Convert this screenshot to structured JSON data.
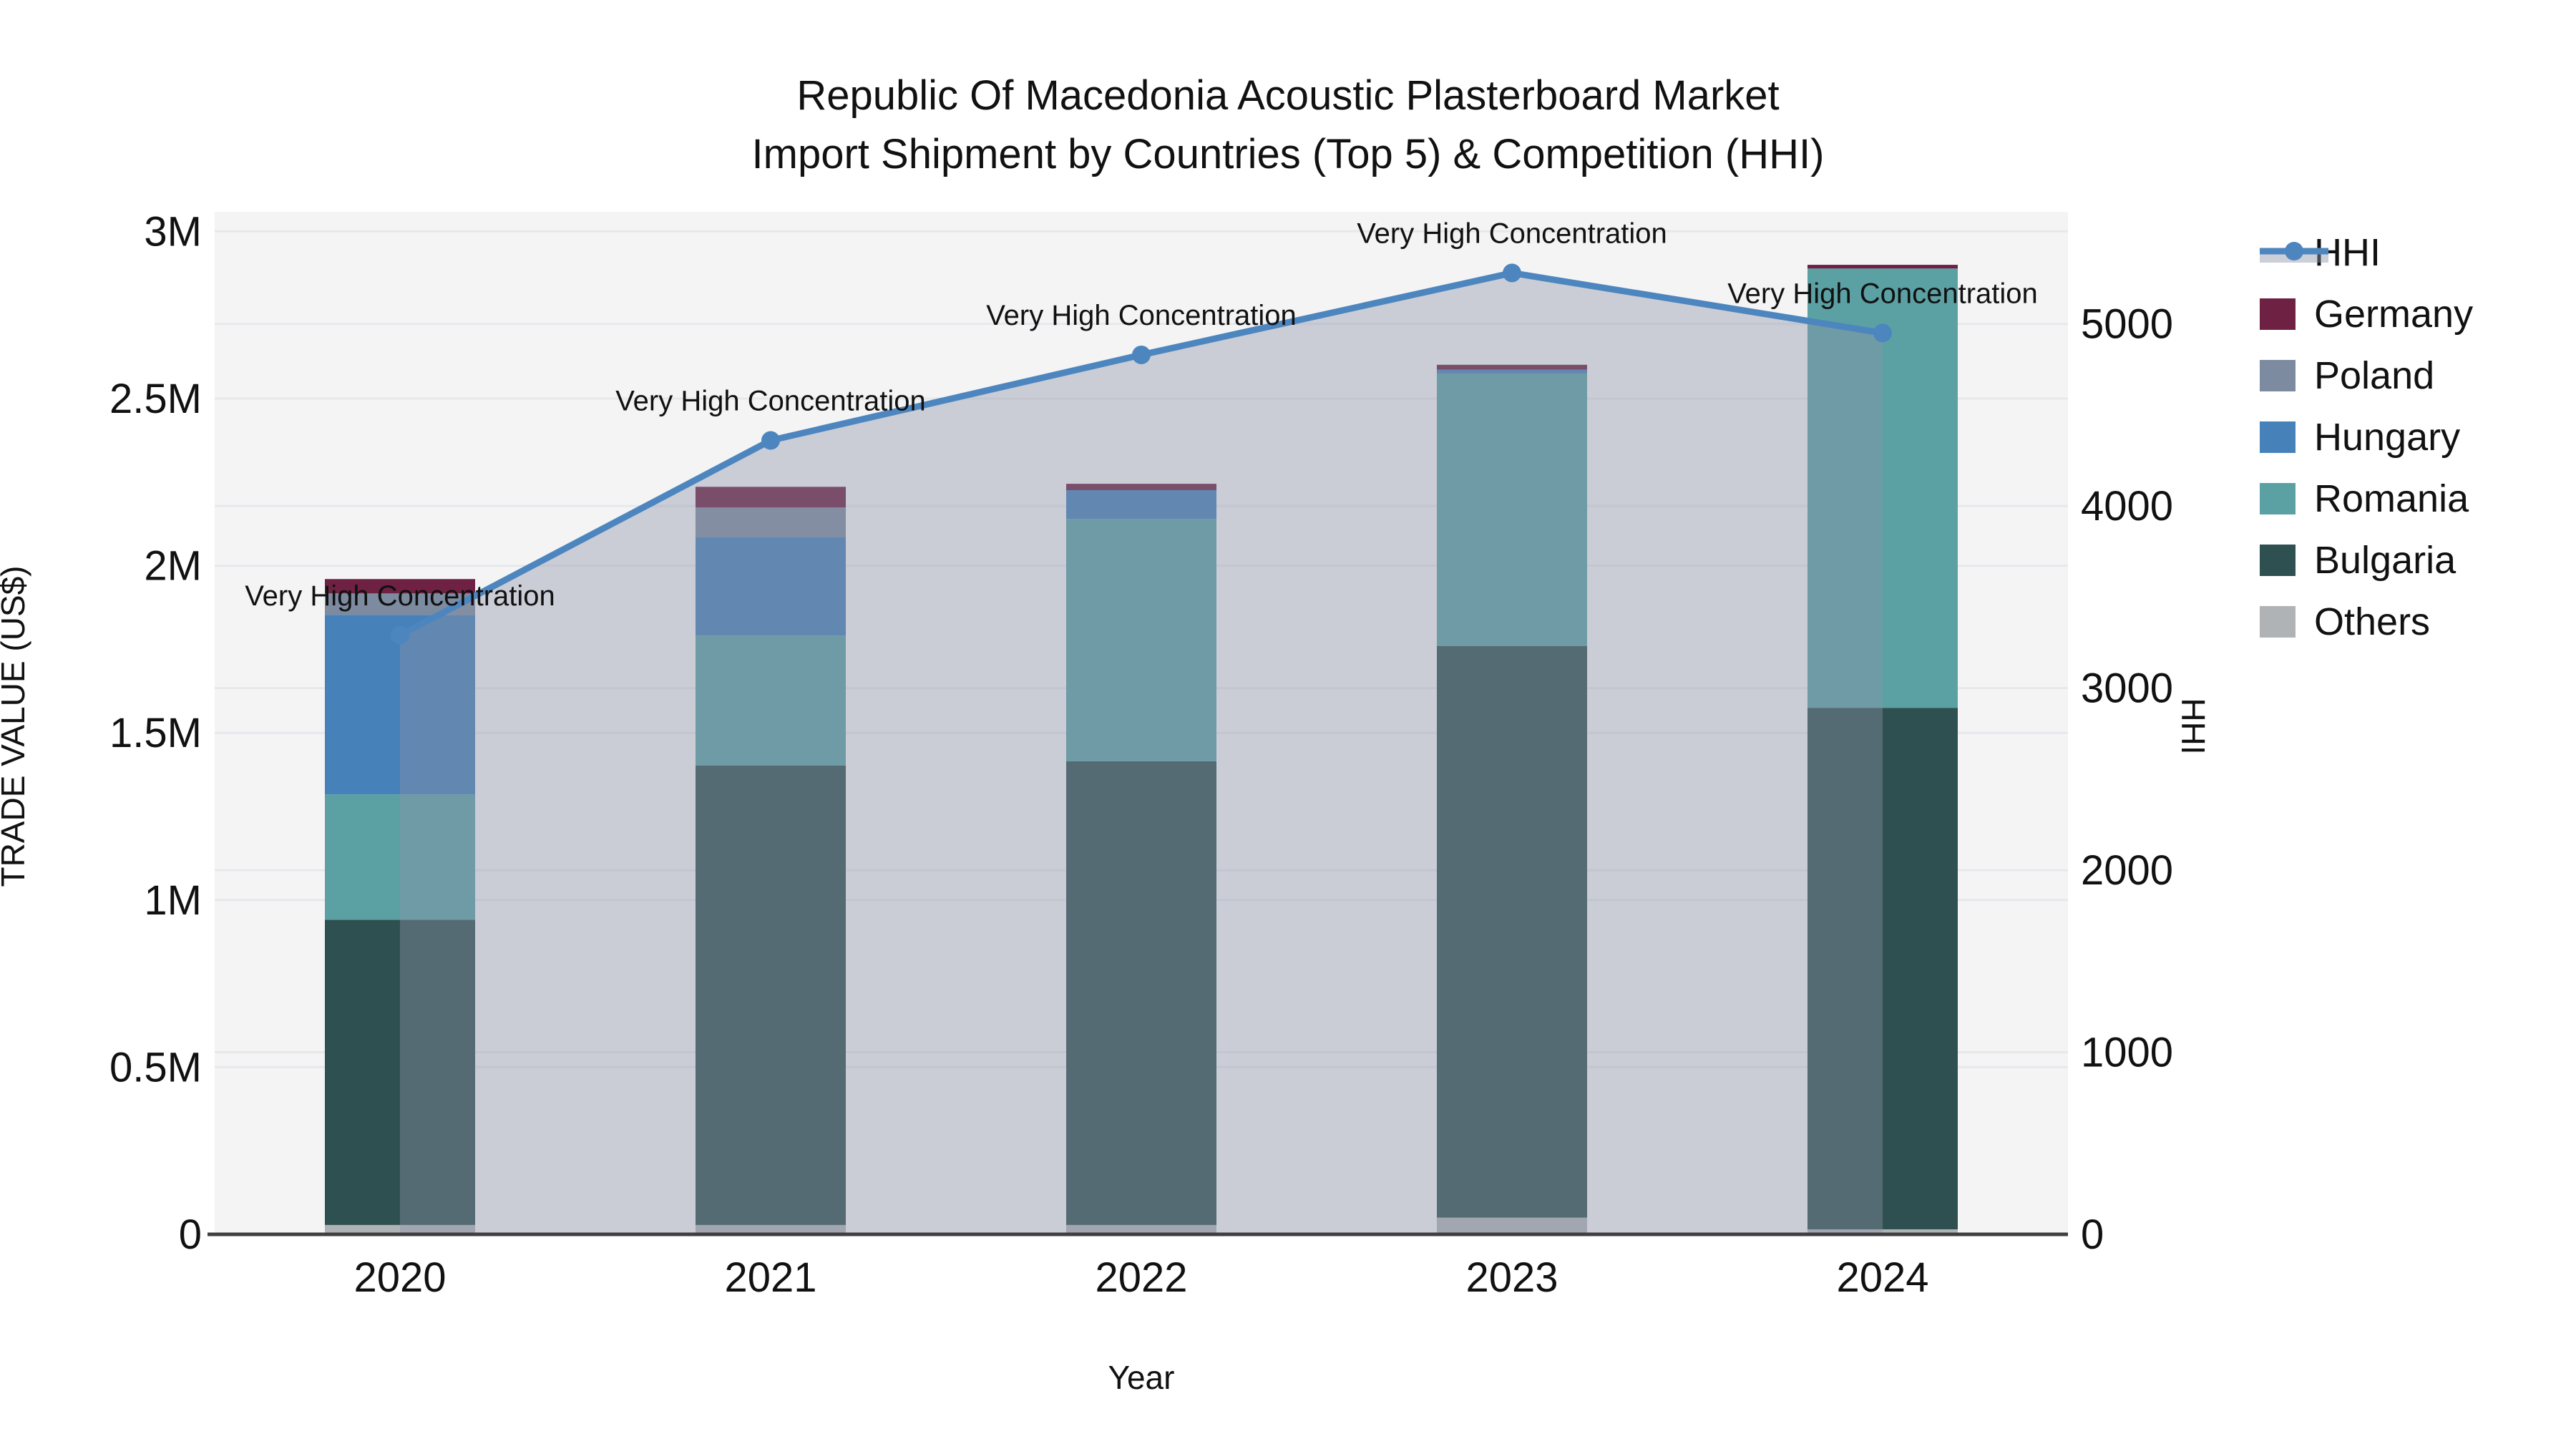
{
  "title": {
    "line1": "Republic Of Macedonia Acoustic Plasterboard Market",
    "line2": "Import Shipment by Countries (Top 5) & Competition (HHI)"
  },
  "axes": {
    "x_title": "Year",
    "y_left_title": "TRADE VALUE (US$)",
    "y_right_title": "HHI"
  },
  "legend": {
    "items": [
      {
        "label": "HHI",
        "type": "line",
        "color": "#4d86bf"
      },
      {
        "label": "Germany",
        "type": "box",
        "color": "#6e2142"
      },
      {
        "label": "Poland",
        "type": "box",
        "color": "#7d8ba0"
      },
      {
        "label": "Hungary",
        "type": "box",
        "color": "#4681b9"
      },
      {
        "label": "Romania",
        "type": "box",
        "color": "#5ba1a4"
      },
      {
        "label": "Bulgaria",
        "type": "box",
        "color": "#2f5050"
      },
      {
        "label": "Others",
        "type": "box",
        "color": "#afb3b6"
      }
    ]
  },
  "chart_data": {
    "type": "combo-stacked-bar-line",
    "categories": [
      "2020",
      "2021",
      "2022",
      "2023",
      "2024"
    ],
    "bar_unit": "US$",
    "bar_series": [
      {
        "name": "Others",
        "color": "#afb3b6",
        "values": [
          28000,
          28000,
          28000,
          50000,
          15000
        ]
      },
      {
        "name": "Bulgaria",
        "color": "#2f5050",
        "values": [
          913000,
          1374000,
          1387000,
          1710000,
          1560000
        ]
      },
      {
        "name": "Romania",
        "color": "#5ba1a4",
        "values": [
          375000,
          389000,
          725000,
          815000,
          1314000
        ]
      },
      {
        "name": "Hungary",
        "color": "#4681b9",
        "values": [
          537000,
          295000,
          86000,
          11000,
          0
        ]
      },
      {
        "name": "Poland",
        "color": "#7d8ba0",
        "values": [
          64000,
          88000,
          0,
          0,
          0
        ]
      },
      {
        "name": "Germany",
        "color": "#6e2142",
        "values": [
          43000,
          62000,
          19000,
          15000,
          11000
        ]
      }
    ],
    "bar_totals": [
      1960000,
      2236000,
      2245000,
      2601000,
      2900000
    ],
    "line_series": {
      "name": "HHI",
      "color": "#4d86bf",
      "area_fill": "rgba(140,148,168,0.40)",
      "values": [
        3290,
        4360,
        4830,
        5280,
        4950
      ]
    },
    "annotations": [
      "Very High Concentration",
      "Very High Concentration",
      "Very High Concentration",
      "Very High Concentration",
      "Very High Concentration"
    ],
    "y_left": {
      "label": "TRADE VALUE (US$)",
      "tick_labels": [
        "0",
        "0.5M",
        "1M",
        "1.5M",
        "2M",
        "2.5M",
        "3M"
      ],
      "tick_values": [
        0,
        500000,
        1000000,
        1500000,
        2000000,
        2500000,
        3000000
      ],
      "max": 3050000
    },
    "y_right": {
      "label": "HHI",
      "tick_labels": [
        "0",
        "1000",
        "2000",
        "3000",
        "4000",
        "5000"
      ],
      "tick_values": [
        0,
        1000,
        2000,
        3000,
        4000,
        5000
      ],
      "max": 5600
    },
    "grid": true,
    "plot_bg": "#f4f4f5",
    "grid_color": "#e7e8ec",
    "axis_line_color": "#3f3f3f",
    "legend_position": "right"
  }
}
